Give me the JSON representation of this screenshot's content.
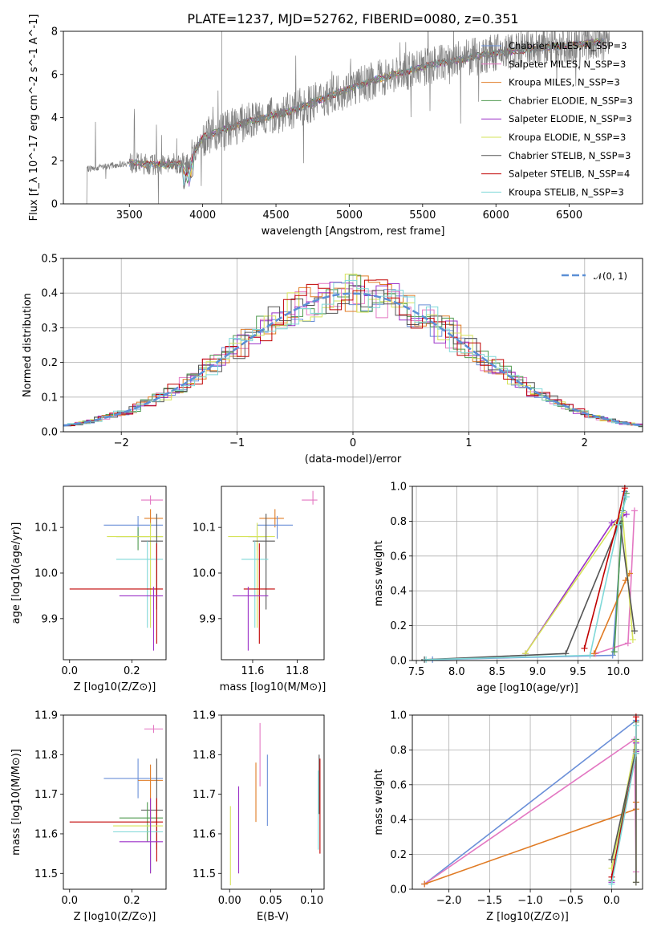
{
  "title": "PLATE=1237, MJD=52762, FIBERID=0080, z=0.351",
  "colors": {
    "Chabrier MILES": "#6a8fd8",
    "Salpeter MILES": "#e377c2",
    "Kroupa MILES": "#e07b24",
    "Chabrier ELODIE": "#4f9a4f",
    "Salpeter ELODIE": "#9b30c8",
    "Kroupa ELODIE": "#d6e35a",
    "Chabrier STELIB": "#555555",
    "Salpeter STELIB": "#c00000",
    "Kroupa STELIB": "#7fd8d8",
    "data": "#808080",
    "normal": "#5b8fd6"
  },
  "chart_data": [
    {
      "id": "spectrum",
      "type": "line",
      "xlabel": "wavelength [Angstrom, rest frame]",
      "ylabel": "Flux [f_λ 10^-17 erg cm^-2 s^-1 A^-1]",
      "xlim": [
        3050,
        7000
      ],
      "ylim": [
        0,
        8
      ],
      "xticks": [
        "3500",
        "4000",
        "4500",
        "5000",
        "5500",
        "6000",
        "6500"
      ],
      "yticks": [
        "0",
        "2",
        "4",
        "6",
        "8"
      ],
      "legend": [
        "Chabrier MILES, N_SSP=3",
        "Salpeter MILES, N_SSP=3",
        "Kroupa MILES, N_SSP=3",
        "Chabrier ELODIE, N_SSP=3",
        "Salpeter ELODIE, N_SSP=3",
        "Kroupa ELODIE, N_SSP=3",
        "Chabrier STELIB, N_SSP=3",
        "Salpeter STELIB, N_SSP=4",
        "Kroupa STELIB, N_SSP=3"
      ],
      "legend_placement": "right",
      "continuum": [
        [
          3200,
          1.6
        ],
        [
          3500,
          1.9
        ],
        [
          3700,
          1.8
        ],
        [
          3900,
          1.9
        ],
        [
          4000,
          3.1
        ],
        [
          4300,
          3.8
        ],
        [
          4600,
          4.3
        ],
        [
          4900,
          5.1
        ],
        [
          5200,
          5.8
        ],
        [
          5600,
          6.5
        ],
        [
          6000,
          7.0
        ],
        [
          6400,
          7.3
        ],
        [
          6700,
          7.5
        ]
      ]
    },
    {
      "id": "residuals",
      "type": "step",
      "xlabel": "(data-model)/error",
      "ylabel": "Normed distribution",
      "xlim": [
        -2.5,
        2.5
      ],
      "ylim": [
        0,
        0.5
      ],
      "xticks": [
        "−2",
        "−1",
        "0",
        "1",
        "2"
      ],
      "yticks": [
        "0.0",
        "0.1",
        "0.2",
        "0.3",
        "0.4",
        "0.5"
      ],
      "legend": [
        "𝒩(0, 1)"
      ],
      "legend_placement": "top-right",
      "grid": true
    },
    {
      "id": "age-Z",
      "type": "errorbar",
      "xlabel": "Z [log10(Z/Z⊙)]",
      "ylabel": "age [log10(age/yr)]",
      "xticks": [
        "0.0",
        "0.2"
      ],
      "yticks": [
        "9.9",
        "10.0",
        "10.1"
      ],
      "xlim": [
        -0.02,
        0.31
      ],
      "ylim": [
        9.81,
        10.19
      ]
    },
    {
      "id": "age-mass",
      "type": "errorbar",
      "xlabel": "mass [log10(M/M⊙)]",
      "xticks": [
        "11.6",
        "11.8"
      ],
      "yticks": [
        "9.9",
        "10.0",
        "10.1"
      ],
      "xlim": [
        11.46,
        11.92
      ],
      "ylim": [
        9.81,
        10.19
      ]
    },
    {
      "id": "weight-age",
      "type": "line",
      "xlabel": "age [log10(age/yr)]",
      "ylabel": "mass weight",
      "xticks": [
        "7.5",
        "8.0",
        "8.5",
        "9.0",
        "9.5",
        "10.0"
      ],
      "yticks": [
        "0.0",
        "0.2",
        "0.4",
        "0.6",
        "0.8",
        "1.0"
      ],
      "xlim": [
        7.45,
        10.3
      ],
      "ylim": [
        0,
        1
      ],
      "grid": true
    },
    {
      "id": "mass-Z",
      "type": "errorbar",
      "xlabel": "Z [log10(Z/Z⊙)]",
      "ylabel": "mass [log10(M/M⊙)]",
      "xticks": [
        "0.0",
        "0.2"
      ],
      "yticks": [
        "11.5",
        "11.6",
        "11.7",
        "11.8",
        "11.9"
      ],
      "xlim": [
        -0.02,
        0.31
      ],
      "ylim": [
        11.46,
        11.9
      ]
    },
    {
      "id": "mass-EBV",
      "type": "errorbar",
      "xlabel": "E(B-V)",
      "xticks": [
        "0.00",
        "0.05",
        "0.10"
      ],
      "yticks": [
        "11.5",
        "11.6",
        "11.7",
        "11.8",
        "11.9"
      ],
      "xlim": [
        -0.01,
        0.115
      ],
      "ylim": [
        11.46,
        11.9
      ]
    },
    {
      "id": "weight-Z",
      "type": "line",
      "xlabel": "Z [log10(Z/Z⊙)]",
      "ylabel": "mass weight",
      "xticks": [
        "−2.0",
        "−1.5",
        "−1.0",
        "−0.5",
        "0.0"
      ],
      "yticks": [
        "0.0",
        "0.2",
        "0.4",
        "0.6",
        "0.8",
        "1.0"
      ],
      "xlim": [
        -2.45,
        0.38
      ],
      "ylim": [
        0,
        1
      ],
      "grid": true
    }
  ],
  "errorbars": {
    "age-Z": [
      {
        "m": "Salpeter MILES",
        "x": 0.26,
        "xe": [
          0.03,
          0.04
        ],
        "y": 10.16,
        "ye": [
          0.01,
          0.01
        ]
      },
      {
        "m": "Kroupa MILES",
        "x": 0.26,
        "xe": [
          0.02,
          0.04
        ],
        "y": 10.12,
        "ye": [
          0.02,
          0.02
        ]
      },
      {
        "m": "Chabrier MILES",
        "x": 0.22,
        "xe": [
          0.11,
          0.08
        ],
        "y": 10.105,
        "ye": [
          0.03,
          0.02
        ]
      },
      {
        "m": "Chabrier ELODIE",
        "x": 0.22,
        "xe": [
          0.07,
          0.08
        ],
        "y": 10.08,
        "ye": [
          0.03,
          0.02
        ]
      },
      {
        "m": "Kroupa ELODIE",
        "x": 0.26,
        "xe": [
          0.14,
          0.04
        ],
        "y": 10.08,
        "ye": [
          0.2,
          0.03
        ]
      },
      {
        "m": "Chabrier STELIB",
        "x": 0.28,
        "xe": [
          0.05,
          0.02
        ],
        "y": 10.07,
        "ye": [
          0.15,
          0.06
        ]
      },
      {
        "m": "Kroupa STELIB",
        "x": 0.25,
        "xe": [
          0.1,
          0.05
        ],
        "y": 10.03,
        "ye": [
          0.15,
          0.04
        ]
      },
      {
        "m": "Salpeter STELIB",
        "x": 0.28,
        "xe": [
          0.28,
          0.02
        ],
        "y": 9.965,
        "ye": [
          0.12,
          0.1
        ]
      },
      {
        "m": "Salpeter ELODIE",
        "x": 0.27,
        "xe": [
          0.11,
          0.03
        ],
        "y": 9.95,
        "ye": [
          0.12,
          0.02
        ]
      }
    ],
    "age-mass": [
      {
        "m": "Salpeter MILES",
        "x": 11.87,
        "xe": [
          0.05,
          0.02
        ],
        "y": 10.16,
        "ye": [
          0.01,
          0.02
        ]
      },
      {
        "m": "Kroupa MILES",
        "x": 11.7,
        "xe": [
          0.07,
          0.04
        ],
        "y": 10.12,
        "ye": [
          0.02,
          0.02
        ]
      },
      {
        "m": "Chabrier MILES",
        "x": 11.71,
        "xe": [
          0.09,
          0.07
        ],
        "y": 10.105,
        "ye": [
          0.03,
          0.02
        ]
      },
      {
        "m": "Chabrier ELODIE",
        "x": 11.62,
        "xe": [
          0.04,
          0.04
        ],
        "y": 10.08,
        "ye": [
          0.03,
          0.02
        ]
      },
      {
        "m": "Kroupa ELODIE",
        "x": 11.62,
        "xe": [
          0.13,
          0.08
        ],
        "y": 10.08,
        "ye": [
          0.2,
          0.03
        ]
      },
      {
        "m": "Chabrier STELIB",
        "x": 11.66,
        "xe": [
          0.06,
          0.04
        ],
        "y": 10.07,
        "ye": [
          0.15,
          0.06
        ]
      },
      {
        "m": "Kroupa STELIB",
        "x": 11.61,
        "xe": [
          0.06,
          0.06
        ],
        "y": 10.03,
        "ye": [
          0.15,
          0.04
        ]
      },
      {
        "m": "Salpeter STELIB",
        "x": 11.63,
        "xe": [
          0.07,
          0.07
        ],
        "y": 9.965,
        "ye": [
          0.12,
          0.1
        ]
      },
      {
        "m": "Salpeter ELODIE",
        "x": 11.58,
        "xe": [
          0.07,
          0.09
        ],
        "y": 9.95,
        "ye": [
          0.12,
          0.02
        ]
      }
    ],
    "mass-Z": [
      {
        "m": "Salpeter MILES",
        "x": 0.27,
        "xe": [
          0.03,
          0.03
        ],
        "y": 11.865,
        "ye": [
          0.01,
          0.01
        ]
      },
      {
        "m": "Chabrier MILES",
        "x": 0.22,
        "xe": [
          0.11,
          0.08
        ],
        "y": 11.74,
        "ye": [
          0.05,
          0.05
        ]
      },
      {
        "m": "Kroupa MILES",
        "x": 0.26,
        "xe": [
          0.04,
          0.04
        ],
        "y": 11.735,
        "ye": [
          0.1,
          0.04
        ]
      },
      {
        "m": "Chabrier STELIB",
        "x": 0.28,
        "xe": [
          0.05,
          0.02
        ],
        "y": 11.66,
        "ye": [
          0.1,
          0.13
        ]
      },
      {
        "m": "Chabrier ELODIE",
        "x": 0.25,
        "xe": [
          0.09,
          0.05
        ],
        "y": 11.64,
        "ye": [
          0.06,
          0.04
        ]
      },
      {
        "m": "Salpeter STELIB",
        "x": 0.28,
        "xe": [
          0.28,
          0.02
        ],
        "y": 11.63,
        "ye": [
          0.1,
          0.06
        ]
      },
      {
        "m": "Kroupa ELODIE",
        "x": 0.26,
        "xe": [
          0.12,
          0.04
        ],
        "y": 11.62,
        "ye": [
          0.12,
          0.03
        ]
      },
      {
        "m": "Kroupa STELIB",
        "x": 0.26,
        "xe": [
          0.12,
          0.04
        ],
        "y": 11.605,
        "ye": [
          0.1,
          0.04
        ]
      },
      {
        "m": "Salpeter ELODIE",
        "x": 0.26,
        "xe": [
          0.1,
          0.04
        ],
        "y": 11.58,
        "ye": [
          0.08,
          0.11
        ]
      }
    ],
    "mass-EBV": [
      {
        "m": "Salpeter MILES",
        "x": 0.037,
        "y": 11.8,
        "ye": [
          0.08,
          0.08
        ]
      },
      {
        "m": "Chabrier MILES",
        "x": 0.046,
        "y": 11.72,
        "ye": [
          0.1,
          0.08
        ]
      },
      {
        "m": "Kroupa MILES",
        "x": 0.032,
        "y": 11.7,
        "ye": [
          0.07,
          0.08
        ]
      },
      {
        "m": "Salpeter ELODIE",
        "x": 0.011,
        "y": 11.61,
        "ye": [
          0.11,
          0.11
        ]
      },
      {
        "m": "Kroupa ELODIE",
        "x": 0.001,
        "y": 11.57,
        "ye": [
          0.1,
          0.1
        ]
      },
      {
        "m": "Chabrier STELIB",
        "x": 0.109,
        "y": 11.73,
        "ye": [
          0.08,
          0.07
        ]
      },
      {
        "m": "Salpeter STELIB",
        "x": 0.11,
        "y": 11.64,
        "ye": [
          0.09,
          0.15
        ]
      },
      {
        "m": "Kroupa STELIB",
        "x": 0.108,
        "y": 11.66,
        "ye": [
          0.1,
          0.1
        ]
      }
    ]
  },
  "weights_age": [
    {
      "m": "Chabrier MILES",
      "pts": [
        [
          7.7,
          0.005
        ],
        [
          9.93,
          0.03
        ],
        [
          10.08,
          0.97
        ]
      ]
    },
    {
      "m": "Salpeter MILES",
      "pts": [
        [
          9.72,
          0.04
        ],
        [
          10.12,
          0.1
        ],
        [
          10.2,
          0.86
        ]
      ]
    },
    {
      "m": "Kroupa MILES",
      "pts": [
        [
          9.7,
          0.04
        ],
        [
          10.09,
          0.46
        ],
        [
          10.14,
          0.5
        ]
      ]
    },
    {
      "m": "Chabrier ELODIE",
      "pts": [
        [
          9.95,
          0.05
        ],
        [
          10.05,
          0.86
        ],
        [
          10.1,
          0.96
        ]
      ]
    },
    {
      "m": "Salpeter ELODIE",
      "pts": [
        [
          8.85,
          0.04
        ],
        [
          9.92,
          0.79
        ],
        [
          10.1,
          0.84
        ]
      ]
    },
    {
      "m": "Kroupa ELODIE",
      "pts": [
        [
          8.85,
          0.04
        ],
        [
          10.05,
          0.85
        ],
        [
          10.18,
          0.12
        ]
      ]
    },
    {
      "m": "Chabrier STELIB",
      "pts": [
        [
          7.6,
          0.005
        ],
        [
          9.35,
          0.04
        ],
        [
          10.02,
          0.8
        ],
        [
          10.2,
          0.17
        ]
      ]
    },
    {
      "m": "Salpeter STELIB",
      "pts": [
        [
          9.58,
          0.07
        ],
        [
          9.98,
          0.78
        ],
        [
          10.08,
          0.99
        ]
      ]
    },
    {
      "m": "Kroupa STELIB",
      "pts": [
        [
          7.62,
          0.005
        ],
        [
          9.65,
          0.03
        ],
        [
          10.0,
          0.78
        ],
        [
          10.1,
          0.94
        ]
      ]
    }
  ],
  "weights_Z": [
    {
      "m": "Chabrier MILES",
      "pts": [
        [
          -2.3,
          0.03
        ],
        [
          0.3,
          0.97
        ]
      ]
    },
    {
      "m": "Salpeter MILES",
      "pts": [
        [
          -2.3,
          0.03
        ],
        [
          0.28,
          0.86
        ],
        [
          0.3,
          0.1
        ]
      ]
    },
    {
      "m": "Kroupa MILES",
      "pts": [
        [
          -2.3,
          0.03
        ],
        [
          0.3,
          0.46
        ],
        [
          0.3,
          0.5
        ]
      ]
    },
    {
      "m": "Chabrier ELODIE",
      "pts": [
        [
          0.0,
          0.05
        ],
        [
          0.3,
          0.86
        ],
        [
          0.3,
          0.96
        ]
      ]
    },
    {
      "m": "Salpeter ELODIE",
      "pts": [
        [
          0.0,
          0.04
        ],
        [
          0.3,
          0.79
        ],
        [
          0.3,
          0.84
        ]
      ]
    },
    {
      "m": "Kroupa ELODIE",
      "pts": [
        [
          0.0,
          0.12
        ],
        [
          0.3,
          0.85
        ],
        [
          0.3,
          0.04
        ]
      ]
    },
    {
      "m": "Chabrier STELIB",
      "pts": [
        [
          0.0,
          0.17
        ],
        [
          0.3,
          0.8
        ],
        [
          0.3,
          0.04
        ]
      ]
    },
    {
      "m": "Salpeter STELIB",
      "pts": [
        [
          0.0,
          0.07
        ],
        [
          0.3,
          0.78
        ],
        [
          0.3,
          0.99
        ]
      ]
    },
    {
      "m": "Kroupa STELIB",
      "pts": [
        [
          0.0,
          0.03
        ],
        [
          0.3,
          0.78
        ],
        [
          0.3,
          0.94
        ]
      ]
    }
  ]
}
